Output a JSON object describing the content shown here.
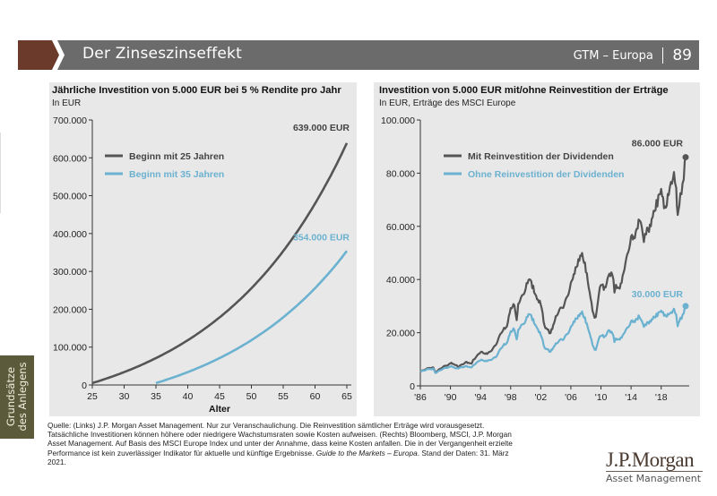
{
  "header": {
    "title": "Der Zinseszinseffekt",
    "series_label": "GTM – Europa",
    "page_number": "89"
  },
  "side_tab": {
    "line1": "Grundsätze",
    "line2": "des Anlegens"
  },
  "colors": {
    "header_bg": "#6b6b6b",
    "chevron": "#6b3a2a",
    "side_tab": "#5b5b3b",
    "panel_bg": "#e8e8e8",
    "series_dark": "#555555",
    "series_blue": "#6bb1d0"
  },
  "chart_data": [
    {
      "type": "line",
      "title": "Jährliche Investition von 5.000 EUR bei 5 % Rendite pro Jahr",
      "subtitle": "In EUR",
      "xlabel": "Alter",
      "ylabel": "",
      "xlim": [
        25,
        65
      ],
      "ylim": [
        0,
        700000
      ],
      "x_ticks": [
        25,
        30,
        35,
        40,
        45,
        50,
        55,
        60,
        65
      ],
      "y_ticks": [
        0,
        100000,
        200000,
        300000,
        400000,
        500000,
        600000,
        700000
      ],
      "y_tick_labels": [
        "0",
        "100.000",
        "200.000",
        "300.000",
        "400.000",
        "500.000",
        "600.000",
        "700.000"
      ],
      "legend_position": "top-left",
      "series": [
        {
          "name": "Beginn mit 25 Jahren",
          "color": "#555555",
          "start_age": 25,
          "annual_contribution": 5000,
          "rate": 0.05,
          "end_label": "639.000 EUR",
          "x": [
            25,
            30,
            35,
            40,
            45,
            50,
            55,
            60,
            65
          ],
          "values": [
            5000,
            35700,
            69000,
            126000,
            186000,
            251000,
            345000,
            466000,
            639000
          ]
        },
        {
          "name": "Beginn mit 35 Jahren",
          "color": "#6bb1d0",
          "start_age": 35,
          "annual_contribution": 5000,
          "rate": 0.05,
          "end_label": "354.000 EUR",
          "x": [
            35,
            40,
            45,
            50,
            55,
            60,
            65
          ],
          "values": [
            5000,
            35700,
            72000,
            120000,
            180000,
            260000,
            354000
          ]
        }
      ]
    },
    {
      "type": "line",
      "title": "Investition von 5.000 EUR mit/ohne Reinvestition der Erträge",
      "subtitle": "In EUR, Erträge des MSCI Europe",
      "xlabel": "",
      "ylabel": "",
      "xlim": [
        1986,
        2021.25
      ],
      "ylim": [
        0,
        100000
      ],
      "x_ticks": [
        1986,
        1990,
        1994,
        1998,
        2002,
        2006,
        2010,
        2014,
        2018
      ],
      "x_tick_labels": [
        "'86",
        "'90",
        "'94",
        "'98",
        "'02",
        "'06",
        "'10",
        "'14",
        "'18"
      ],
      "y_ticks": [
        0,
        20000,
        40000,
        60000,
        80000,
        100000
      ],
      "y_tick_labels": [
        "0",
        "20.000",
        "40.000",
        "60.000",
        "80.000",
        "100.000"
      ],
      "legend_position": "top-left",
      "series": [
        {
          "name": "Mit Reinvestition der Dividenden",
          "color": "#555555",
          "end_label": "86.000 EUR",
          "x": [
            1986,
            1987,
            1987.7,
            1988,
            1989,
            1990,
            1990.7,
            1991,
            1992,
            1992.8,
            1993,
            1994,
            1994.5,
            1995,
            1996,
            1997,
            1997.5,
            1998,
            1998.5,
            1998.8,
            1999,
            2000,
            2000.5,
            2001,
            2001.5,
            2002,
            2002.5,
            2003,
            2003.3,
            2004,
            2005,
            2006,
            2006.5,
            2007,
            2007.5,
            2008,
            2008.5,
            2009,
            2009.3,
            2009.7,
            2010,
            2010.5,
            2011,
            2011.5,
            2011.8,
            2012,
            2012.5,
            2013,
            2014,
            2014.5,
            2015,
            2015.3,
            2015.7,
            2016,
            2016.5,
            2017,
            2017.5,
            2018,
            2018.5,
            2019,
            2019.3,
            2019.7,
            2020,
            2020.2,
            2020.4,
            2020.7,
            2021,
            2021.25
          ],
          "values": [
            5500,
            6500,
            7000,
            5200,
            7000,
            8500,
            8000,
            7000,
            9000,
            8500,
            9500,
            13000,
            12000,
            12000,
            15500,
            21000,
            23000,
            29000,
            30000,
            25000,
            31000,
            37000,
            40000,
            37000,
            33000,
            31000,
            22000,
            21000,
            20000,
            26000,
            30000,
            38000,
            42000,
            48000,
            50000,
            43000,
            35000,
            27000,
            25500,
            35000,
            38000,
            36000,
            42000,
            43000,
            35000,
            37000,
            36000,
            44000,
            55000,
            56000,
            63000,
            61000,
            56000,
            57000,
            60000,
            66000,
            69000,
            73000,
            66000,
            74000,
            77000,
            80000,
            72000,
            64000,
            68000,
            72000,
            80000,
            86000
          ]
        },
        {
          "name": "Ohne Reinvestition der Dividenden",
          "color": "#6bb1d0",
          "end_label": "30.000 EUR",
          "x": [
            1986,
            1987,
            1987.7,
            1988,
            1989,
            1990,
            1990.7,
            1991,
            1992,
            1992.8,
            1993,
            1994,
            1994.5,
            1995,
            1996,
            1997,
            1997.5,
            1998,
            1998.5,
            1998.8,
            1999,
            2000,
            2000.5,
            2001,
            2001.5,
            2002,
            2002.5,
            2003,
            2003.3,
            2004,
            2005,
            2006,
            2006.5,
            2007,
            2007.5,
            2008,
            2008.5,
            2009,
            2009.3,
            2009.7,
            2010,
            2010.5,
            2011,
            2011.5,
            2011.8,
            2012,
            2012.5,
            2013,
            2014,
            2014.5,
            2015,
            2015.3,
            2015.7,
            2016,
            2016.5,
            2017,
            2017.5,
            2018,
            2018.5,
            2019,
            2019.3,
            2019.7,
            2020,
            2020.2,
            2020.4,
            2020.7,
            2021,
            2021.25
          ],
          "values": [
            5500,
            6200,
            6500,
            5000,
            6300,
            7300,
            6800,
            6500,
            7500,
            7000,
            7500,
            10000,
            9300,
            9200,
            11000,
            15000,
            16500,
            20500,
            21000,
            17500,
            21000,
            25000,
            27000,
            24500,
            22000,
            19500,
            14000,
            13500,
            13000,
            16000,
            17500,
            22000,
            24000,
            26500,
            28000,
            24000,
            19500,
            14500,
            13500,
            18000,
            19000,
            18000,
            21000,
            20500,
            16500,
            17500,
            17000,
            20000,
            24000,
            24000,
            26500,
            25000,
            23000,
            23000,
            24000,
            26000,
            27000,
            28000,
            26000,
            27500,
            28000,
            29000,
            26000,
            22500,
            24500,
            25000,
            28000,
            30000
          ]
        }
      ]
    }
  ],
  "footnote": {
    "text_main": "Quelle: (Links) J.P. Morgan Asset Management. Nur zur Veranschaulichung. Die Reinvestition sämtlicher Erträge wird vorausgesetzt. Tatsächliche Investitionen können höhere oder niedrigere Wachstumsraten sowie Kosten aufweisen. (Rechts) Bloomberg, MSCI, J.P. Morgan Asset Management. Auf Basis des MSCI Europe Index und unter der Annahme, dass keine Kosten anfallen. Die in der Vergangenheit erzielte Performance ist kein zuverlässiger Indikator für aktuelle und künftige Ergebnisse.",
    "text_italic": "Guide to the Markets – Europa",
    "text_end": ". Stand der Daten: 31. März 2021."
  },
  "logo": {
    "brand": "J.P.Morgan",
    "subtitle": "Asset Management"
  }
}
